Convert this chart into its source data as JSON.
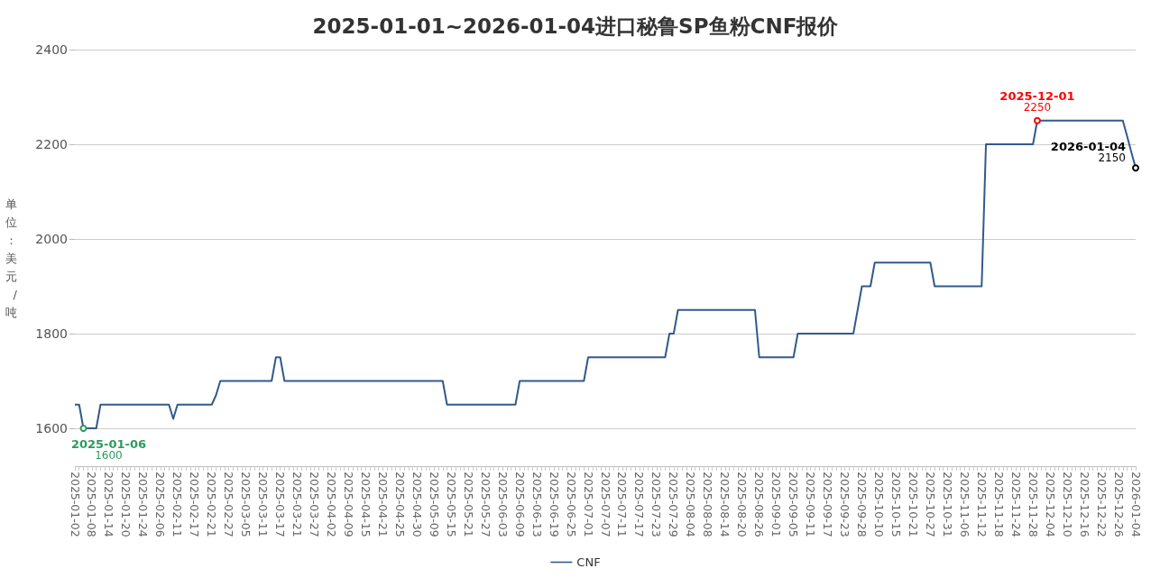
{
  "chart_data": {
    "type": "line",
    "title": "2025-01-01~2026-01-04进口秘鲁SP鱼粉CNF报价",
    "ylabel": "单位：美元/吨",
    "categories": [
      "2025-01-02",
      null,
      null,
      null,
      "2025-01-08",
      null,
      null,
      null,
      "2025-01-14",
      null,
      null,
      null,
      "2025-01-20",
      null,
      null,
      null,
      "2025-01-24",
      null,
      null,
      null,
      "2025-02-06",
      null,
      null,
      null,
      "2025-02-11",
      null,
      null,
      null,
      "2025-02-17",
      null,
      null,
      null,
      "2025-02-21",
      null,
      null,
      null,
      "2025-02-27",
      null,
      null,
      null,
      "2025-03-05",
      null,
      null,
      null,
      "2025-03-11",
      null,
      null,
      null,
      "2025-03-17",
      null,
      null,
      null,
      "2025-03-21",
      null,
      null,
      null,
      "2025-03-27",
      null,
      null,
      null,
      "2025-04-02",
      null,
      null,
      null,
      "2025-04-09",
      null,
      null,
      null,
      "2025-04-15",
      null,
      null,
      null,
      "2025-04-21",
      null,
      null,
      null,
      "2025-04-25",
      null,
      null,
      null,
      "2025-04-30",
      null,
      null,
      null,
      "2025-05-09",
      null,
      null,
      null,
      "2025-05-15",
      null,
      null,
      null,
      "2025-05-21",
      null,
      null,
      null,
      "2025-05-27",
      null,
      null,
      null,
      "2025-06-03",
      null,
      null,
      null,
      "2025-06-09",
      null,
      null,
      null,
      "2025-06-13",
      null,
      null,
      null,
      "2025-06-19",
      null,
      null,
      null,
      "2025-06-25",
      null,
      null,
      null,
      "2025-07-01",
      null,
      null,
      null,
      "2025-07-07",
      null,
      null,
      null,
      "2025-07-11",
      null,
      null,
      null,
      "2025-07-17",
      null,
      null,
      null,
      "2025-07-23",
      null,
      null,
      null,
      "2025-07-29",
      null,
      null,
      null,
      "2025-08-04",
      null,
      null,
      null,
      "2025-08-08",
      null,
      null,
      null,
      "2025-08-14",
      null,
      null,
      null,
      "2025-08-20",
      null,
      null,
      null,
      "2025-08-26",
      null,
      null,
      null,
      "2025-09-01",
      null,
      null,
      null,
      "2025-09-05",
      null,
      null,
      null,
      "2025-09-11",
      null,
      null,
      null,
      "2025-09-17",
      null,
      null,
      null,
      "2025-09-23",
      null,
      null,
      null,
      "2025-09-28",
      null,
      null,
      null,
      "2025-10-10",
      null,
      null,
      null,
      "2025-10-15",
      null,
      null,
      null,
      "2025-10-21",
      null,
      null,
      null,
      "2025-10-27",
      null,
      null,
      null,
      "2025-10-31",
      null,
      null,
      null,
      "2025-11-06",
      null,
      null,
      null,
      "2025-11-12",
      null,
      null,
      null,
      "2025-11-18",
      null,
      null,
      null,
      "2025-11-24",
      null,
      null,
      null,
      "2025-11-28",
      null,
      null,
      null,
      "2025-12-04",
      null,
      null,
      null,
      "2025-12-10",
      null,
      null,
      null,
      "2025-12-16",
      null,
      null,
      null,
      "2025-12-22",
      null,
      null,
      null,
      "2025-12-26",
      null,
      null,
      null,
      "2026-01-04"
    ],
    "series": [
      {
        "name": "CNF",
        "color": "#325a8c",
        "values": [
          1650,
          1650,
          1600,
          1600,
          1600,
          1600,
          1650,
          1650,
          1650,
          1650,
          1650,
          1650,
          1650,
          1650,
          1650,
          1650,
          1650,
          1650,
          1650,
          1650,
          1650,
          1650,
          1650,
          1620,
          1650,
          1650,
          1650,
          1650,
          1650,
          1650,
          1650,
          1650,
          1650,
          1670,
          1700,
          1700,
          1700,
          1700,
          1700,
          1700,
          1700,
          1700,
          1700,
          1700,
          1700,
          1700,
          1700,
          1750,
          1750,
          1700,
          1700,
          1700,
          1700,
          1700,
          1700,
          1700,
          1700,
          1700,
          1700,
          1700,
          1700,
          1700,
          1700,
          1700,
          1700,
          1700,
          1700,
          1700,
          1700,
          1700,
          1700,
          1700,
          1700,
          1700,
          1700,
          1700,
          1700,
          1700,
          1700,
          1700,
          1700,
          1700,
          1700,
          1700,
          1700,
          1700,
          1700,
          1650,
          1650,
          1650,
          1650,
          1650,
          1650,
          1650,
          1650,
          1650,
          1650,
          1650,
          1650,
          1650,
          1650,
          1650,
          1650,
          1650,
          1700,
          1700,
          1700,
          1700,
          1700,
          1700,
          1700,
          1700,
          1700,
          1700,
          1700,
          1700,
          1700,
          1700,
          1700,
          1700,
          1750,
          1750,
          1750,
          1750,
          1750,
          1750,
          1750,
          1750,
          1750,
          1750,
          1750,
          1750,
          1750,
          1750,
          1750,
          1750,
          1750,
          1750,
          1750,
          1800,
          1800,
          1850,
          1850,
          1850,
          1850,
          1850,
          1850,
          1850,
          1850,
          1850,
          1850,
          1850,
          1850,
          1850,
          1850,
          1850,
          1850,
          1850,
          1850,
          1850,
          1750,
          1750,
          1750,
          1750,
          1750,
          1750,
          1750,
          1750,
          1750,
          1800,
          1800,
          1800,
          1800,
          1800,
          1800,
          1800,
          1800,
          1800,
          1800,
          1800,
          1800,
          1800,
          1800,
          1850,
          1900,
          1900,
          1900,
          1950,
          1950,
          1950,
          1950,
          1950,
          1950,
          1950,
          1950,
          1950,
          1950,
          1950,
          1950,
          1950,
          1950,
          1900,
          1900,
          1900,
          1900,
          1900,
          1900,
          1900,
          1900,
          1900,
          1900,
          1900,
          1900,
          2200,
          2200,
          2200,
          2200,
          2200,
          2200,
          2200,
          2200,
          2200,
          2200,
          2200,
          2200,
          2250,
          2250,
          2250,
          2250,
          2250,
          2250,
          2250,
          2250,
          2250,
          2250,
          2250,
          2250,
          2250,
          2250,
          2250,
          2250,
          2250,
          2250,
          2250,
          2250,
          2250,
          2217,
          2183,
          2150
        ]
      }
    ],
    "annotations": [
      "2025-01-06",
      "1600",
      "2025-12-01",
      "2250",
      "2026-01-04",
      "2150"
    ],
    "ylim": [
      1520,
      2400
    ],
    "yticks": [
      1600,
      1800,
      2000,
      2200,
      2400
    ],
    "grid": "y",
    "legend": "bottom",
    "marker": "none"
  }
}
